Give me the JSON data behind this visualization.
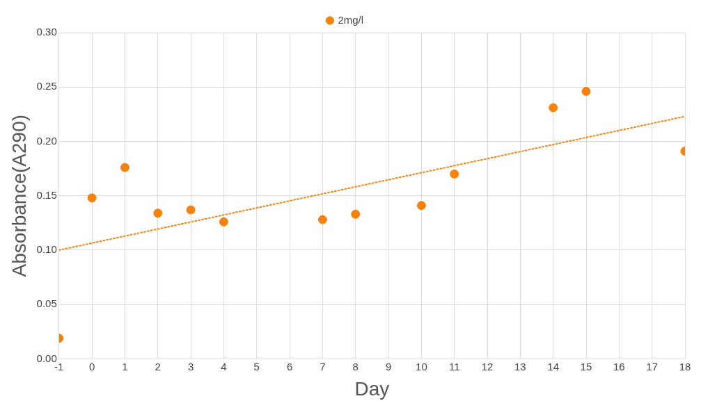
{
  "chart_data": {
    "type": "scatter",
    "xlabel": "Day",
    "ylabel": "Absorbance(A290)",
    "x": [
      -1,
      0,
      1,
      2,
      3,
      4,
      7,
      8,
      10,
      11,
      14,
      15,
      18
    ],
    "series": [
      {
        "name": "2mg/l",
        "color": "#f5820f",
        "values": [
          0.019,
          0.148,
          0.176,
          0.134,
          0.137,
          0.126,
          0.128,
          0.133,
          0.141,
          0.17,
          0.231,
          0.246,
          0.191
        ]
      },
      {
        "type": "line",
        "color": "#f5820f",
        "x": [
          -1,
          18
        ],
        "values": [
          0.1,
          0.223
        ],
        "line_style": "dotted",
        "marker": "none"
      }
    ],
    "xlim": [
      -1,
      18
    ],
    "xticks": [
      -1,
      0,
      1,
      2,
      3,
      4,
      5,
      6,
      7,
      8,
      9,
      10,
      11,
      12,
      13,
      14,
      15,
      16,
      17,
      18
    ],
    "ylim": [
      0,
      0.3
    ],
    "yticks": [
      {
        "value": 0,
        "label": "0.00"
      },
      {
        "value": 0.05,
        "label": "0.05"
      },
      {
        "value": 0.1,
        "label": "0.10"
      },
      {
        "value": 0.15,
        "label": "0.15"
      },
      {
        "value": 0.2,
        "label": "0.20"
      },
      {
        "value": 0.25,
        "label": "0.25"
      },
      {
        "value": 0.3,
        "label": "0.30"
      }
    ],
    "grid": true,
    "legend": "top",
    "marker": "circle"
  }
}
